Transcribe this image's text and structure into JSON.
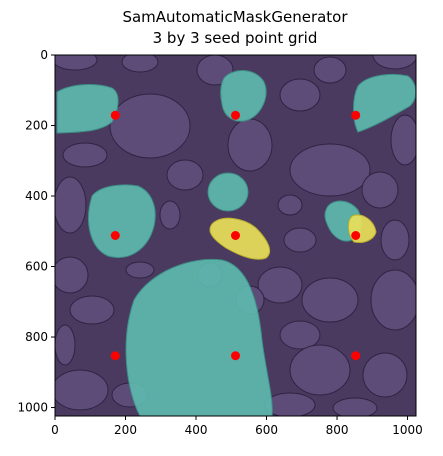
{
  "chart_data": {
    "type": "scatter",
    "title_lines": [
      "SamAutomaticMaskGenerator",
      "3 by 3 seed point grid"
    ],
    "xlabel": "",
    "ylabel": "",
    "xlim": [
      0,
      1024
    ],
    "ylim": [
      1024,
      0
    ],
    "grid": false,
    "x_ticks": [
      0,
      200,
      400,
      600,
      800,
      1000
    ],
    "y_ticks": [
      0,
      200,
      400,
      600,
      800,
      1000
    ],
    "background_image": "overhead-photo-of-river-stones-with-segmentation-masks",
    "points": {
      "color": "#ff0000",
      "x": [
        171,
        171,
        171,
        512,
        512,
        512,
        853,
        853,
        853
      ],
      "y": [
        171,
        512,
        853,
        171,
        512,
        853,
        171,
        512,
        853
      ]
    },
    "mask_colors": {
      "background": "#3b2a55",
      "teal": "#5fbfb0",
      "yellow": "#e8e05a"
    }
  }
}
